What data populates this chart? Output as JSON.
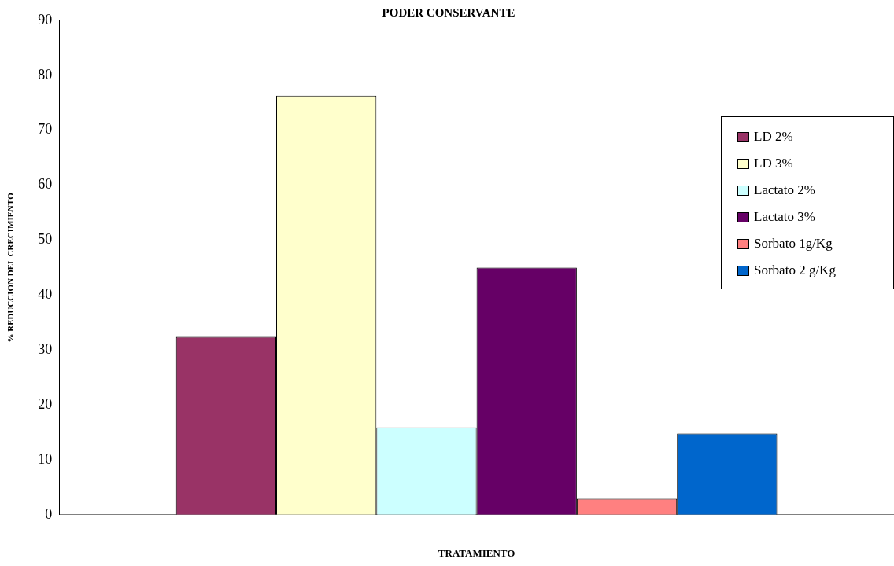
{
  "chart_data": {
    "type": "bar",
    "title": "PODER CONSERVANTE",
    "xlabel": "TRATAMIENTO",
    "ylabel": "% REDUCCION DEL CRECIMIENTO",
    "categories": [
      null
    ],
    "series": [
      {
        "name": "LD 2%",
        "color": "#993366",
        "values": [
          32.4
        ]
      },
      {
        "name": "LD 3%",
        "color": "#ffffcc",
        "values": [
          76.3
        ]
      },
      {
        "name": "Lactato 2%",
        "color": "#ccffff",
        "values": [
          15.9
        ]
      },
      {
        "name": "Lactato 3%",
        "color": "#660066",
        "values": [
          45.0
        ]
      },
      {
        "name": "Sorbato 1g/Kg",
        "color": "#ff8080",
        "values": [
          2.9
        ]
      },
      {
        "name": "Sorbato 2 g/Kg",
        "color": "#0066cc",
        "values": [
          14.8
        ]
      }
    ],
    "ylim": [
      0,
      90
    ],
    "yticks": [
      0,
      10,
      20,
      30,
      40,
      50,
      60,
      70,
      80,
      90
    ],
    "grid": false,
    "legend": "top right"
  }
}
